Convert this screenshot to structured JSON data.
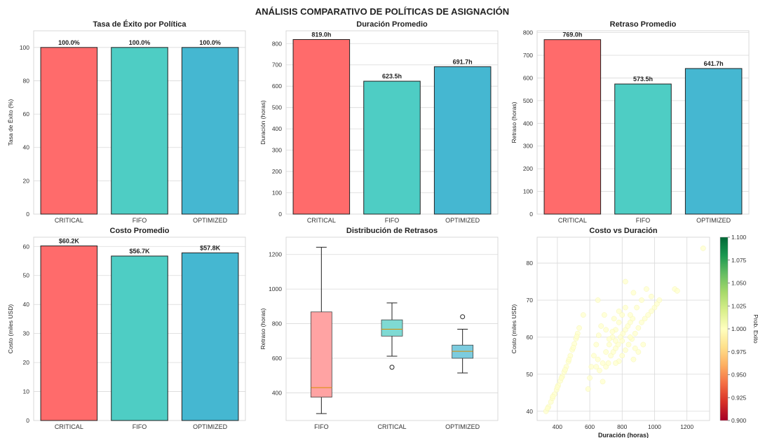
{
  "figure": {
    "title": "ANÁLISIS COMPARATIVO DE POLÍTICAS DE ASIGNACIÓN"
  },
  "colors": {
    "critical": "#ff6b6b",
    "fifo": "#4ecdc4",
    "optimized": "#45b7d1"
  },
  "chart_data": [
    {
      "type": "bar",
      "title": "Tasa de Éxito por Política",
      "ylabel": "Tasa de Éxito (%)",
      "categories": [
        "CRITICAL",
        "FIFO",
        "OPTIMIZED"
      ],
      "values": [
        100.0,
        100.0,
        100.0
      ],
      "labels": [
        "100.0%",
        "100.0%",
        "100.0%"
      ],
      "ylim": [
        0,
        110
      ],
      "yticks": [
        0,
        20,
        40,
        60,
        80,
        100
      ]
    },
    {
      "type": "bar",
      "title": "Duración Promedio",
      "ylabel": "Duración (horas)",
      "categories": [
        "CRITICAL",
        "FIFO",
        "OPTIMIZED"
      ],
      "values": [
        819.0,
        623.5,
        691.7
      ],
      "labels": [
        "819.0h",
        "623.5h",
        "691.7h"
      ],
      "ylim": [
        0,
        860
      ],
      "yticks": [
        0,
        100,
        200,
        300,
        400,
        500,
        600,
        700,
        800
      ]
    },
    {
      "type": "bar",
      "title": "Retraso Promedio",
      "ylabel": "Retraso (horas)",
      "categories": [
        "CRITICAL",
        "FIFO",
        "OPTIMIZED"
      ],
      "values": [
        769.0,
        573.5,
        641.7
      ],
      "labels": [
        "769.0h",
        "573.5h",
        "641.7h"
      ],
      "ylim": [
        0,
        808
      ],
      "yticks": [
        0,
        100,
        200,
        300,
        400,
        500,
        600,
        700,
        800
      ]
    },
    {
      "type": "bar",
      "title": "Costo Promedio",
      "ylabel": "Costo (miles USD)",
      "categories": [
        "CRITICAL",
        "FIFO",
        "OPTIMIZED"
      ],
      "values": [
        60.2,
        56.7,
        57.8
      ],
      "labels": [
        "$60.2K",
        "$56.7K",
        "$57.8K"
      ],
      "ylim": [
        0,
        63.2
      ],
      "yticks": [
        0,
        10,
        20,
        30,
        40,
        50,
        60
      ]
    },
    {
      "type": "box",
      "title": "Distribución de Retrasos",
      "ylabel": "Retraso (horas)",
      "categories": [
        "FIFO",
        "CRITICAL",
        "OPTIMIZED"
      ],
      "boxes": [
        {
          "min": 280,
          "q1": 375,
          "median": 430,
          "q3": 868,
          "max": 1242,
          "outliers": []
        },
        {
          "min": 612,
          "q1": 728,
          "median": 768,
          "q3": 822,
          "max": 920,
          "outliers": [
            548
          ]
        },
        {
          "min": 515,
          "q1": 600,
          "median": 640,
          "q3": 676,
          "max": 768,
          "outliers": [
            840
          ]
        }
      ],
      "ylim": [
        240,
        1300
      ],
      "yticks": [
        400,
        600,
        800,
        1000,
        1200
      ]
    },
    {
      "type": "scatter",
      "title": "Costo vs Duración",
      "xlabel": "Duración (horas)",
      "ylabel": "Costo (miles USD)",
      "xlim": [
        275,
        1340
      ],
      "ylim": [
        37.5,
        87
      ],
      "xticks": [
        400,
        600,
        800,
        1000,
        1200
      ],
      "yticks": [
        40,
        50,
        60,
        70,
        80
      ],
      "color": "#ffffcc",
      "points": [
        [
          330,
          40
        ],
        [
          345,
          41.2
        ],
        [
          360,
          42.5
        ],
        [
          370,
          43.5
        ],
        [
          382,
          44.6
        ],
        [
          395,
          45.8
        ],
        [
          405,
          47
        ],
        [
          418,
          48.2
        ],
        [
          430,
          49.4
        ],
        [
          442,
          50.6
        ],
        [
          455,
          52
        ],
        [
          468,
          53.4
        ],
        [
          480,
          55
        ],
        [
          492,
          56.6
        ],
        [
          505,
          58.2
        ],
        [
          515,
          59.6
        ],
        [
          525,
          61
        ],
        [
          535,
          62.5
        ],
        [
          340,
          40.8
        ],
        [
          372,
          44
        ],
        [
          400,
          46.5
        ],
        [
          425,
          49
        ],
        [
          448,
          51.2
        ],
        [
          472,
          54
        ],
        [
          498,
          57.2
        ],
        [
          520,
          60.2
        ],
        [
          590,
          46
        ],
        [
          600,
          49
        ],
        [
          610,
          52
        ],
        [
          625,
          55
        ],
        [
          640,
          58
        ],
        [
          655,
          60.5
        ],
        [
          670,
          63
        ],
        [
          690,
          66
        ],
        [
          700,
          52
        ],
        [
          715,
          53
        ],
        [
          730,
          55
        ],
        [
          745,
          56
        ],
        [
          760,
          57
        ],
        [
          775,
          58
        ],
        [
          790,
          60
        ],
        [
          805,
          61
        ],
        [
          820,
          62
        ],
        [
          835,
          63
        ],
        [
          850,
          64
        ],
        [
          865,
          65
        ],
        [
          780,
          53.5
        ],
        [
          800,
          55
        ],
        [
          820,
          56.5
        ],
        [
          840,
          58
        ],
        [
          860,
          59.5
        ],
        [
          880,
          61
        ],
        [
          900,
          62.5
        ],
        [
          920,
          64
        ],
        [
          940,
          65
        ],
        [
          960,
          66
        ],
        [
          980,
          67
        ],
        [
          1000,
          68
        ],
        [
          1015,
          69
        ],
        [
          1030,
          70
        ],
        [
          720,
          58
        ],
        [
          740,
          60
        ],
        [
          760,
          62
        ],
        [
          780,
          64
        ],
        [
          800,
          66
        ],
        [
          820,
          68
        ],
        [
          640,
          52
        ],
        [
          660,
          51
        ],
        [
          680,
          53
        ],
        [
          700,
          56
        ],
        [
          720,
          59.5
        ],
        [
          740,
          61.5
        ],
        [
          760,
          59
        ],
        [
          800,
          59
        ],
        [
          850,
          60
        ],
        [
          880,
          57
        ],
        [
          900,
          56
        ],
        [
          930,
          58
        ],
        [
          820,
          75
        ],
        [
          870,
          72
        ],
        [
          890,
          68
        ],
        [
          920,
          70
        ],
        [
          950,
          73
        ],
        [
          980,
          71
        ],
        [
          1125,
          73
        ],
        [
          1140,
          72.5
        ],
        [
          1300,
          84
        ],
        [
          560,
          66
        ],
        [
          650,
          70
        ],
        [
          700,
          62
        ],
        [
          750,
          65
        ],
        [
          780,
          67
        ],
        [
          850,
          66
        ],
        [
          870,
          54
        ],
        [
          760,
          53
        ],
        [
          650,
          54
        ],
        [
          680,
          48
        ]
      ],
      "colorbar": {
        "label": "Prob. Éxito",
        "ticks": [
          "0.900",
          "0.925",
          "0.950",
          "0.975",
          "1.000",
          "1.025",
          "1.050",
          "1.075",
          "1.100"
        ],
        "cmap": [
          "#a50026",
          "#d73027",
          "#f46d43",
          "#fdae61",
          "#fee08b",
          "#ffffbf",
          "#d9ef8b",
          "#a6d96a",
          "#66bd63",
          "#1a9850",
          "#006837"
        ]
      }
    }
  ]
}
